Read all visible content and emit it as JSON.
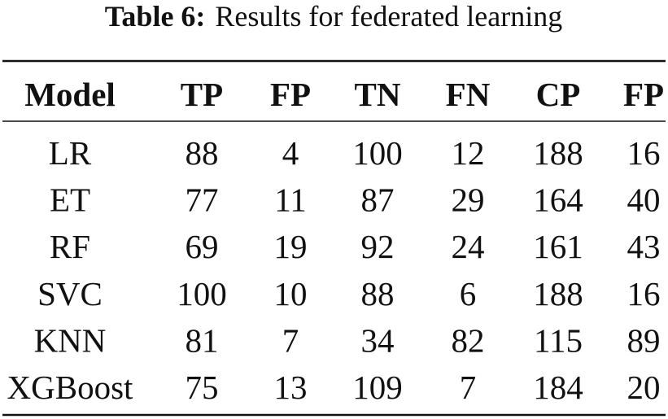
{
  "caption": {
    "label": "Table 6:",
    "text": "Results for federated learning"
  },
  "table": {
    "header": [
      "Model",
      "TP",
      "FP",
      "TN",
      "FN",
      "CP",
      "FP"
    ],
    "rows": [
      [
        "LR",
        88,
        4,
        100,
        12,
        188,
        16
      ],
      [
        "ET",
        77,
        11,
        87,
        29,
        164,
        40
      ],
      [
        "RF",
        69,
        19,
        92,
        24,
        161,
        43
      ],
      [
        "SVC",
        100,
        10,
        88,
        6,
        188,
        16
      ],
      [
        "KNN",
        81,
        7,
        34,
        82,
        115,
        89
      ],
      [
        "XGBoost",
        75,
        13,
        109,
        7,
        184,
        20
      ]
    ]
  }
}
